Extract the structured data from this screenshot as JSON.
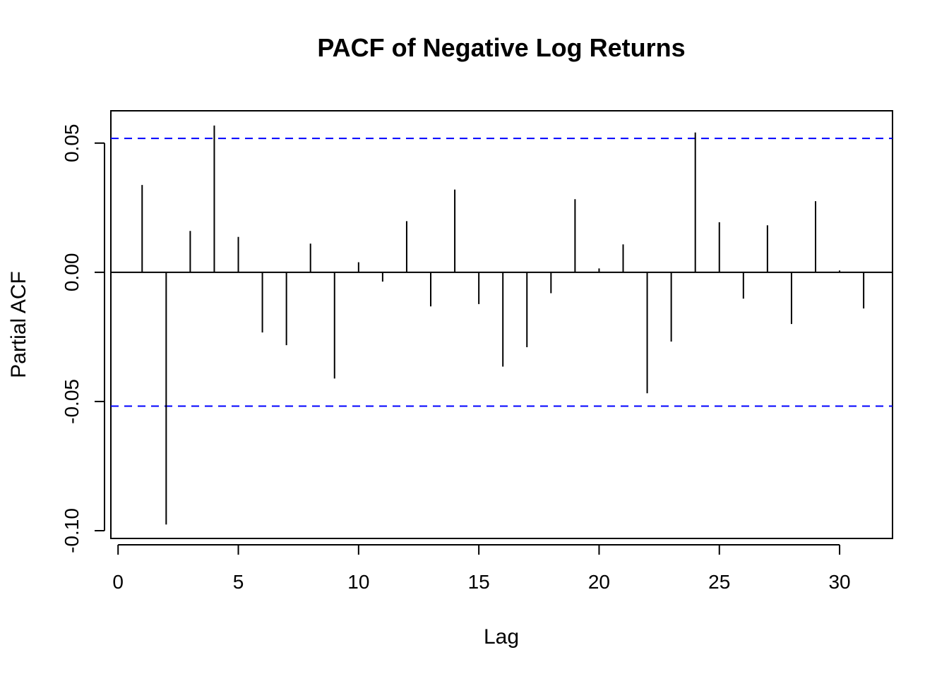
{
  "chart_data": {
    "type": "bar",
    "title": "PACF of Negative Log Returns",
    "xlabel": "Lag",
    "ylabel": "Partial ACF",
    "xlim": [
      -0.3,
      32.2
    ],
    "ylim": [
      -0.103,
      0.0625
    ],
    "x_ticks": [
      0,
      5,
      10,
      15,
      20,
      25,
      30
    ],
    "x_tick_labels": [
      "0",
      "5",
      "10",
      "15",
      "20",
      "25",
      "30"
    ],
    "y_ticks": [
      -0.1,
      -0.05,
      0.0,
      0.05
    ],
    "y_tick_labels": [
      "-0.10",
      "-0.05",
      "0.00",
      "0.05"
    ],
    "confidence_bound": 0.0518,
    "confidence_color": "#0000ff",
    "bar_color": "#000000",
    "grid": false,
    "lags": [
      1,
      2,
      3,
      4,
      5,
      6,
      7,
      8,
      9,
      10,
      11,
      12,
      13,
      14,
      15,
      16,
      17,
      18,
      19,
      20,
      21,
      22,
      23,
      24,
      25,
      26,
      27,
      28,
      29,
      30,
      31
    ],
    "values": [
      0.0338,
      -0.0976,
      0.016,
      0.0568,
      0.0137,
      -0.0233,
      -0.0282,
      0.0111,
      -0.0411,
      0.0039,
      -0.0036,
      0.0198,
      -0.0132,
      0.032,
      -0.0123,
      -0.0365,
      -0.029,
      -0.0081,
      0.0283,
      0.0015,
      0.0108,
      -0.0468,
      -0.0268,
      0.0541,
      0.0194,
      -0.0102,
      0.0182,
      -0.02,
      0.0275,
      0.0007,
      -0.014
    ]
  }
}
